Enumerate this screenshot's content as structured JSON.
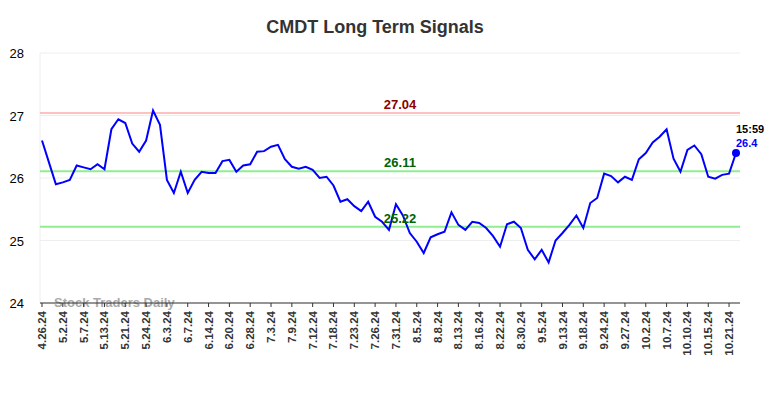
{
  "chart_data": {
    "type": "line",
    "title": "CMDT Long Term Signals",
    "categories": [
      "4.26.24",
      null,
      null,
      "5.2.24",
      null,
      null,
      "5.7.24",
      null,
      null,
      "5.13.24",
      null,
      null,
      "5.21.24",
      null,
      null,
      "5.24.24",
      null,
      null,
      "6.3.24",
      null,
      null,
      "6.7.24",
      null,
      null,
      "6.14.24",
      null,
      null,
      "6.20.24",
      null,
      null,
      "6.28.24",
      null,
      null,
      "7.3.24",
      null,
      null,
      "7.9.24",
      null,
      null,
      "7.12.24",
      null,
      null,
      "7.18.24",
      null,
      null,
      "7.23.24",
      null,
      null,
      "7.26.24",
      null,
      null,
      "7.31.24",
      null,
      null,
      "8.5.24",
      null,
      null,
      "8.8.24",
      null,
      null,
      "8.13.24",
      null,
      null,
      "8.16.24",
      null,
      null,
      "8.22.24",
      null,
      null,
      "8.30.24",
      null,
      null,
      "9.5.24",
      null,
      null,
      "9.13.24",
      null,
      null,
      "9.18.24",
      null,
      null,
      "9.24.24",
      null,
      null,
      "9.27.24",
      null,
      null,
      "10.2.24",
      null,
      null,
      "10.7.24",
      null,
      null,
      "10.10.24",
      null,
      null,
      "10.15.24",
      null,
      null,
      "10.21.24",
      null
    ],
    "values": [
      26.6,
      26.25,
      25.9,
      25.93,
      25.97,
      26.2,
      26.17,
      26.14,
      26.22,
      26.14,
      26.78,
      26.94,
      26.88,
      26.55,
      26.42,
      26.6,
      27.08,
      26.85,
      25.97,
      25.76,
      26.1,
      25.76,
      25.97,
      26.1,
      26.08,
      26.08,
      26.27,
      26.29,
      26.1,
      26.2,
      26.22,
      26.42,
      26.43,
      26.5,
      26.53,
      26.3,
      26.18,
      26.15,
      26.18,
      26.13,
      26.0,
      26.02,
      25.88,
      25.62,
      25.66,
      25.55,
      25.47,
      25.62,
      25.38,
      25.3,
      25.17,
      25.58,
      25.4,
      25.12,
      24.98,
      24.8,
      25.05,
      25.1,
      25.14,
      25.45,
      25.25,
      25.17,
      25.3,
      25.28,
      25.2,
      25.07,
      24.9,
      25.26,
      25.3,
      25.2,
      24.85,
      24.7,
      24.85,
      24.65,
      25.0,
      25.12,
      25.25,
      25.4,
      25.2,
      25.6,
      25.68,
      26.07,
      26.03,
      25.93,
      26.02,
      25.97,
      26.3,
      26.4,
      26.57,
      26.66,
      26.78,
      26.31,
      26.1,
      26.45,
      26.52,
      26.38,
      26.02,
      25.99,
      26.05,
      26.07,
      26.4
    ],
    "color": "#0000ff",
    "ylim": [
      24,
      28
    ],
    "yticks": [
      24,
      25,
      26,
      27,
      28
    ],
    "grid": true,
    "reference_lines": [
      {
        "value": 27.04,
        "color": "#ffc0c0",
        "label_color": "#8b0000"
      },
      {
        "value": 26.11,
        "color": "#90ee90",
        "label_color": "#006400"
      },
      {
        "value": 25.22,
        "color": "#90ee90",
        "label_color": "#006400"
      }
    ],
    "last_label": "15:59",
    "watermark": "Stock Traders Daily"
  }
}
